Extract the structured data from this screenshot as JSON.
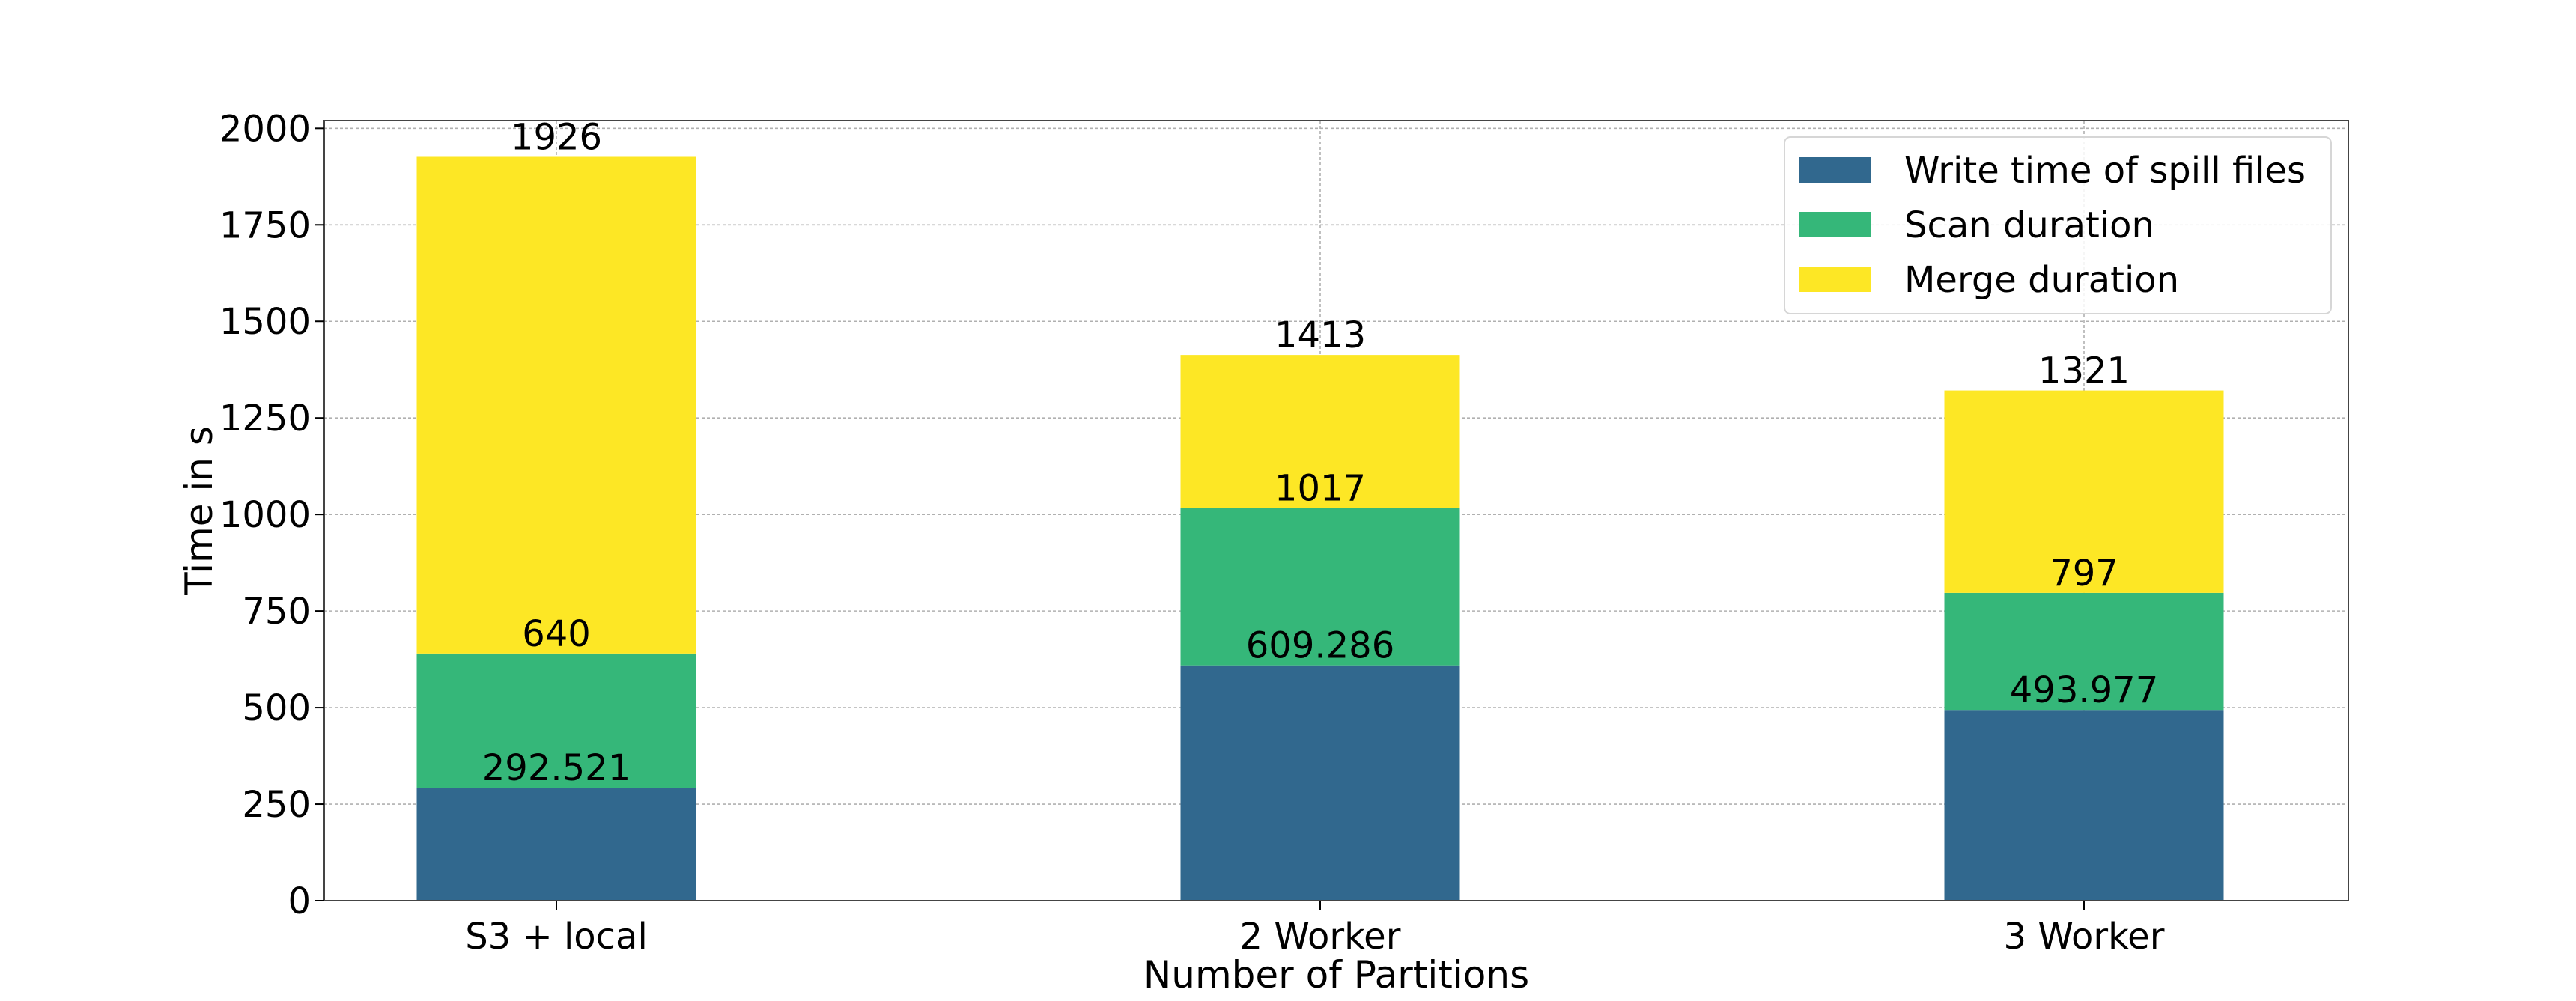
{
  "chart_data": {
    "type": "bar",
    "stacked": true,
    "categories": [
      "S3 + local",
      "2 Worker",
      "3 Worker"
    ],
    "series": [
      {
        "name": "Write time of spill files",
        "color": "#31688e",
        "values": [
          292.521,
          609.286,
          493.977
        ],
        "labels": [
          "292.521",
          "609.286",
          "493.977"
        ]
      },
      {
        "name": "Scan duration",
        "color": "#35b779",
        "values": [
          347.479,
          407.714,
          303.023
        ],
        "labels": [
          "640",
          "1017",
          "797"
        ]
      },
      {
        "name": "Merge duration",
        "color": "#fde725",
        "values": [
          1286,
          396,
          524
        ],
        "labels": [
          "1926",
          "1413",
          "1321"
        ]
      }
    ],
    "xlabel": "Number of Partitions",
    "ylabel": "Time in s",
    "ylim": [
      0,
      2020
    ],
    "yticks": [
      0,
      250,
      500,
      750,
      1000,
      1250,
      1500,
      1750,
      2000
    ],
    "grid": true,
    "legend": "top-right"
  }
}
